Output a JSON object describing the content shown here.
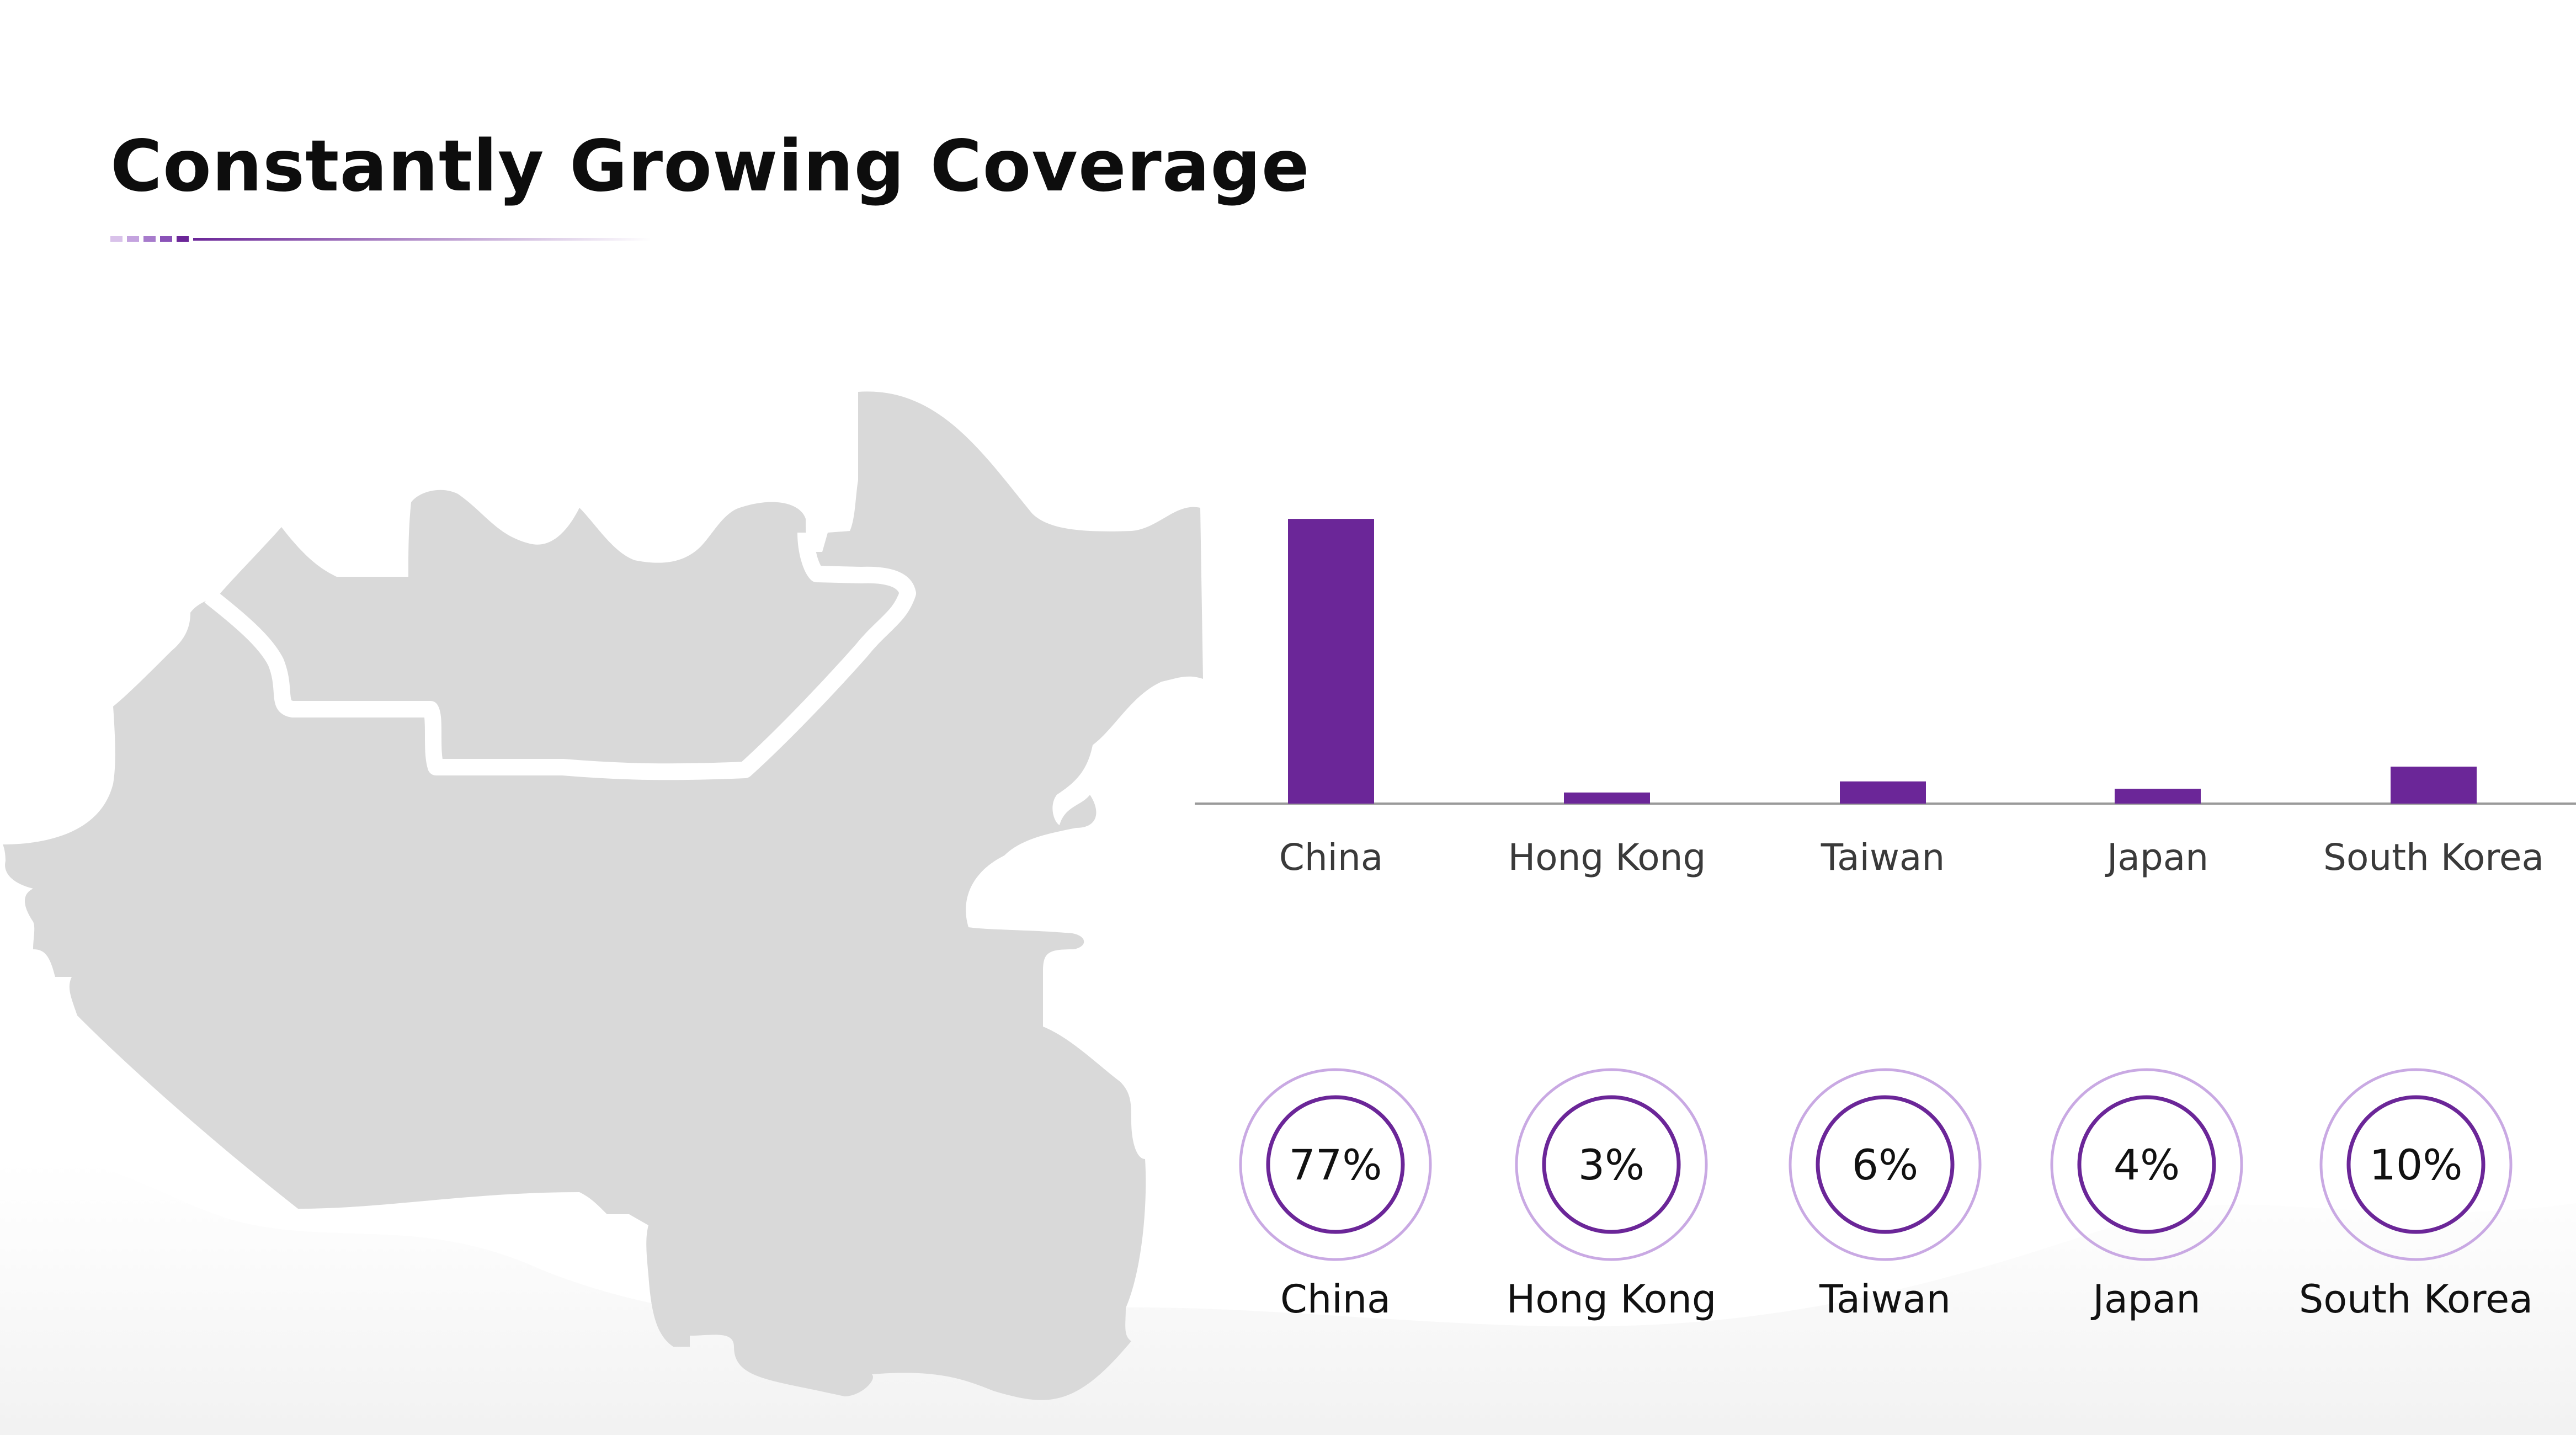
{
  "slide": {
    "title": "Constantly Growing Coverage"
  },
  "colors": {
    "accent": "#6b2698",
    "map_fill": "#d9d9d9",
    "axis": "#9a9a9a",
    "ring_outer": "#c9a9e3",
    "ring_inner": "#6b2698"
  },
  "chart_data": [
    {
      "type": "bar",
      "categories": [
        "China",
        "Hong Kong",
        "Taiwan",
        "Japan",
        "South Korea"
      ],
      "values": [
        77,
        3,
        6,
        4,
        10
      ],
      "title": "",
      "xlabel": "",
      "ylabel": "",
      "ylim": [
        0,
        80
      ],
      "grid": false,
      "legend": "none"
    },
    {
      "type": "table",
      "categories": [
        "China",
        "Hong Kong",
        "Taiwan",
        "Japan",
        "South Korea"
      ],
      "values": [
        77,
        3,
        6,
        4,
        10
      ],
      "value_labels": [
        "77%",
        "3%",
        "6%",
        "4%",
        "10%"
      ]
    }
  ]
}
